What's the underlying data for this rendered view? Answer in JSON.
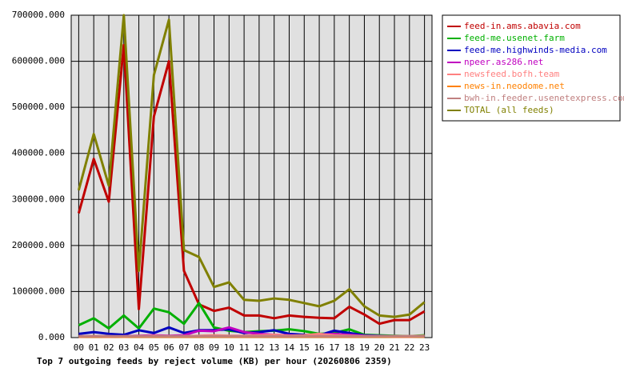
{
  "chart_data": {
    "type": "line",
    "title": "Top 7 outgoing feeds by reject volume (KB) per hour (20260806 2359)",
    "categories": [
      "00",
      "01",
      "02",
      "03",
      "04",
      "05",
      "06",
      "07",
      "08",
      "09",
      "10",
      "11",
      "12",
      "13",
      "14",
      "15",
      "16",
      "17",
      "18",
      "19",
      "20",
      "21",
      "22",
      "23"
    ],
    "ylim": [
      0,
      700000
    ],
    "yticks": [
      {
        "value": 0,
        "label": "0.000"
      },
      {
        "value": 100000,
        "label": "100000.000"
      },
      {
        "value": 200000,
        "label": "200000.000"
      },
      {
        "value": 300000,
        "label": "300000.000"
      },
      {
        "value": 400000,
        "label": "400000.000"
      },
      {
        "value": 500000,
        "label": "500000.000"
      },
      {
        "value": 600000,
        "label": "600000.000"
      },
      {
        "value": 700000,
        "label": "700000.000"
      }
    ],
    "grid": true,
    "legend": "right",
    "series": [
      {
        "name": "feed-in.ams.abavia.com",
        "color": "#c00000",
        "values": [
          270000,
          388000,
          295000,
          635000,
          62000,
          480000,
          600000,
          145000,
          72000,
          58000,
          65000,
          48000,
          48000,
          42000,
          48000,
          45000,
          43000,
          42000,
          67000,
          50000,
          30000,
          38000,
          38000,
          57000
        ]
      },
      {
        "name": "feed-me.usenet.farm",
        "color": "#00b000",
        "values": [
          27000,
          42000,
          20000,
          48000,
          20000,
          63000,
          55000,
          30000,
          75000,
          22000,
          15000,
          12000,
          14000,
          15000,
          18000,
          14000,
          8000,
          10000,
          18000,
          6000,
          5000,
          4000,
          3000,
          5000
        ]
      },
      {
        "name": "feed-me.highwinds-media.com",
        "color": "#0000c0",
        "values": [
          8000,
          12000,
          8000,
          6000,
          16000,
          10000,
          22000,
          10000,
          16000,
          16000,
          18000,
          10000,
          12000,
          16000,
          8000,
          6000,
          5000,
          15000,
          10000,
          5000,
          4000,
          3000,
          2000,
          3000
        ]
      },
      {
        "name": "npeer.as286.net",
        "color": "#c000c0",
        "values": [
          2000,
          3000,
          2000,
          3000,
          4000,
          5000,
          4000,
          5000,
          15000,
          14000,
          22000,
          12000,
          8000,
          6000,
          5000,
          4000,
          6000,
          8000,
          6000,
          4000,
          3000,
          2000,
          2000,
          3000
        ]
      },
      {
        "name": "newsfeed.bofh.team",
        "color": "#ff8080",
        "values": [
          3000,
          3000,
          3000,
          2000,
          3000,
          4000,
          3000,
          3000,
          4000,
          5000,
          4000,
          4000,
          5000,
          6000,
          4000,
          5000,
          8000,
          5000,
          4000,
          3000,
          3000,
          3000,
          3000,
          4000
        ]
      },
      {
        "name": "news-in.neodome.net",
        "color": "#ff8000",
        "values": [
          2000,
          2000,
          2000,
          2000,
          2000,
          2000,
          2000,
          2000,
          2000,
          2000,
          2000,
          2000,
          2000,
          2000,
          2000,
          2000,
          2000,
          2000,
          2000,
          2000,
          2000,
          2000,
          2000,
          2000
        ]
      },
      {
        "name": "bwh-in.feeder.usenetexpress.com",
        "color": "#c08080",
        "values": [
          3000,
          3000,
          3000,
          3000,
          3000,
          3000,
          3000,
          3000,
          3000,
          3000,
          3000,
          3000,
          3000,
          3000,
          3000,
          3000,
          3000,
          3000,
          3000,
          3000,
          3000,
          3000,
          3000,
          3000
        ]
      },
      {
        "name": "TOTAL (all feeds)",
        "color": "#808000",
        "values": [
          320000,
          442000,
          330000,
          700000,
          145000,
          570000,
          690000,
          190000,
          175000,
          110000,
          120000,
          82000,
          80000,
          85000,
          82000,
          75000,
          68000,
          80000,
          105000,
          68000,
          48000,
          45000,
          50000,
          77000
        ]
      }
    ]
  }
}
